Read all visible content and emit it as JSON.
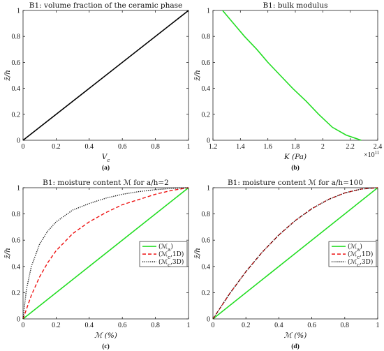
{
  "chart_data": [
    {
      "id": "a",
      "type": "line",
      "title": "B1: volume fraction of the ceramic phase",
      "xlabel": "V_c",
      "ylabel": "z̄/h",
      "caption": "(a)",
      "xlim": [
        0,
        1
      ],
      "ylim": [
        0,
        1
      ],
      "xticks": [
        "0",
        "0.2",
        "0.4",
        "0.6",
        "0.8",
        "1"
      ],
      "yticks": [
        "0",
        "0.2",
        "0.4",
        "0.6",
        "0.8",
        "1"
      ],
      "series": [
        {
          "color": "#000000",
          "dash": "solid",
          "x": [
            0,
            1
          ],
          "y": [
            0,
            1
          ]
        }
      ]
    },
    {
      "id": "b",
      "type": "line",
      "title": "B1: bulk modulus",
      "xlabel": "K (Pa)",
      "ylabel": "z̄/h",
      "caption": "(b)",
      "xlim": [
        1.2,
        2.4
      ],
      "ylim": [
        0,
        1
      ],
      "xticks": [
        "1.2",
        "1.4",
        "1.6",
        "1.8",
        "2",
        "2.2",
        "2.4"
      ],
      "yticks": [
        "0",
        "0.2",
        "0.4",
        "0.6",
        "0.8",
        "1"
      ],
      "x_multiplier": "×10",
      "x_multiplier_exp": "11",
      "series": [
        {
          "color": "#22dd22",
          "dash": "solid",
          "x": [
            1.27,
            1.35,
            1.43,
            1.52,
            1.6,
            1.69,
            1.78,
            1.88,
            1.97,
            2.07,
            2.17,
            2.28
          ],
          "y": [
            1.0,
            0.9,
            0.8,
            0.7,
            0.6,
            0.5,
            0.4,
            0.3,
            0.2,
            0.1,
            0.04,
            0.0
          ]
        }
      ]
    },
    {
      "id": "c",
      "type": "line",
      "title": "B1: moisture content ℳ for a/h=2",
      "xlabel": "ℳ (%)",
      "ylabel": "z̄/h",
      "caption": "(c)",
      "xlim": [
        0,
        1
      ],
      "ylim": [
        0,
        1
      ],
      "xticks": [
        "0",
        "0.2",
        "0.4",
        "0.6",
        "0.8",
        "1"
      ],
      "yticks": [
        "0",
        "0.2",
        "0.4",
        "0.6",
        "0.8",
        "1"
      ],
      "legend": {
        "position": "right-middle",
        "entries": [
          "(ℳ_a)",
          "(ℳ_c,1D)",
          "(ℳ_c,3D)"
        ]
      },
      "series": [
        {
          "name": "(ℳ_a)",
          "color": "#22dd22",
          "dash": "solid",
          "x": [
            0,
            1
          ],
          "y": [
            0,
            1
          ]
        },
        {
          "name": "(ℳ_c,1D)",
          "color": "#ee1111",
          "dash": "dashed",
          "x": [
            0,
            0.05,
            0.1,
            0.15,
            0.2,
            0.3,
            0.4,
            0.5,
            0.6,
            0.7,
            0.8,
            0.9,
            1.0
          ],
          "y": [
            0,
            0.18,
            0.32,
            0.43,
            0.52,
            0.65,
            0.74,
            0.81,
            0.87,
            0.91,
            0.95,
            0.98,
            1.0
          ]
        },
        {
          "name": "(ℳ_c,3D)",
          "color": "#111111",
          "dash": "dotted",
          "x": [
            0,
            0.02,
            0.05,
            0.1,
            0.15,
            0.2,
            0.3,
            0.4,
            0.5,
            0.6,
            0.7,
            0.8,
            0.9,
            1.0
          ],
          "y": [
            0,
            0.22,
            0.4,
            0.57,
            0.67,
            0.74,
            0.83,
            0.88,
            0.92,
            0.95,
            0.97,
            0.985,
            0.995,
            1.0
          ]
        }
      ]
    },
    {
      "id": "d",
      "type": "line",
      "title": "B1: moisture content ℳ for a/h=100",
      "xlabel": "ℳ (%)",
      "ylabel": "z̄/h",
      "caption": "(d)",
      "xlim": [
        0,
        1
      ],
      "ylim": [
        0,
        1
      ],
      "xticks": [
        "0",
        "0.2",
        "0.4",
        "0.6",
        "0.8",
        "1"
      ],
      "yticks": [
        "0",
        "0.2",
        "0.4",
        "0.6",
        "0.8",
        "1"
      ],
      "legend": {
        "position": "right-middle",
        "entries": [
          "(ℳ_a)",
          "(ℳ_c,1D)",
          "(ℳ_c,3D)"
        ]
      },
      "series": [
        {
          "name": "(ℳ_a)",
          "color": "#22dd22",
          "dash": "solid",
          "x": [
            0,
            1
          ],
          "y": [
            0,
            1
          ]
        },
        {
          "name": "(ℳ_c,1D)",
          "color": "#ee1111",
          "dash": "dashed",
          "x": [
            0,
            0.1,
            0.2,
            0.3,
            0.4,
            0.5,
            0.6,
            0.7,
            0.8,
            0.9,
            1.0
          ],
          "y": [
            0,
            0.19,
            0.36,
            0.51,
            0.64,
            0.75,
            0.84,
            0.91,
            0.96,
            0.99,
            1.0
          ]
        },
        {
          "name": "(ℳ_c,3D)",
          "color": "#111111",
          "dash": "dotted",
          "x": [
            0,
            0.1,
            0.2,
            0.3,
            0.4,
            0.5,
            0.6,
            0.7,
            0.8,
            0.9,
            1.0
          ],
          "y": [
            0,
            0.19,
            0.36,
            0.51,
            0.64,
            0.75,
            0.84,
            0.91,
            0.96,
            0.99,
            1.0
          ]
        }
      ]
    }
  ]
}
